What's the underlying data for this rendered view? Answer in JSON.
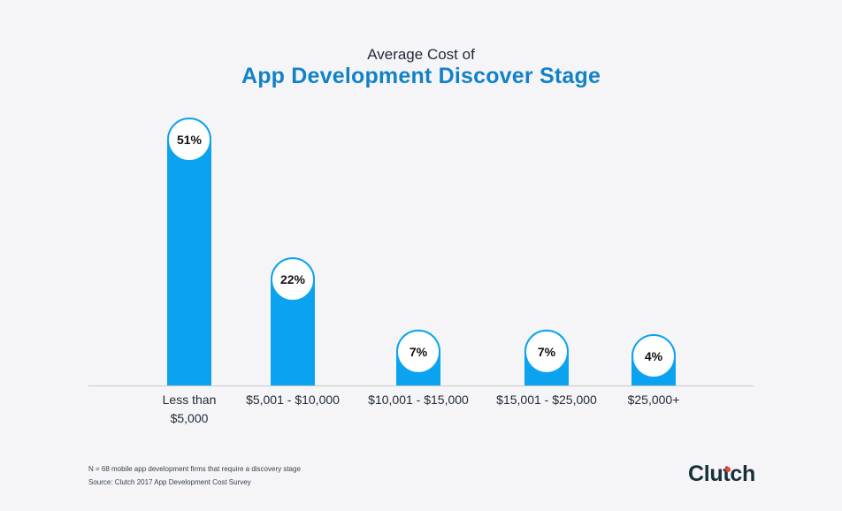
{
  "header": {
    "subtitle": "Average Cost of",
    "title": "App Development Discover Stage"
  },
  "chart_data": {
    "type": "bar",
    "title": "App Development Discover Stage",
    "subtitle": "Average Cost of",
    "categories": [
      "Less than $5,000",
      "$5,001 - $10,000",
      "$10,001 - $15,000",
      "$15,001 - $25,000",
      "$25,000+"
    ],
    "category_lines": [
      [
        "Less than",
        "$5,000"
      ],
      [
        "$5,001 - $10,000"
      ],
      [
        "$10,001 - $15,000"
      ],
      [
        "$15,001 - $25,000"
      ],
      [
        "$25,000+"
      ]
    ],
    "values": [
      51,
      22,
      7,
      7,
      4
    ],
    "value_labels": [
      "51%",
      "22%",
      "7%",
      "7%",
      "4%"
    ],
    "unit": "%",
    "grid": false,
    "bar_color": "#0ba3f0"
  },
  "footer": {
    "note": "N = 68 mobile app development firms that require a discovery stage",
    "source": "Source: Clutch 2017 App Development Cost Survey",
    "logo": "Clutch"
  },
  "colors": {
    "title": "#1282c8",
    "bar": "#0ba3f0",
    "background": "#f5f5f7",
    "logo_dot": "#ef4335"
  }
}
